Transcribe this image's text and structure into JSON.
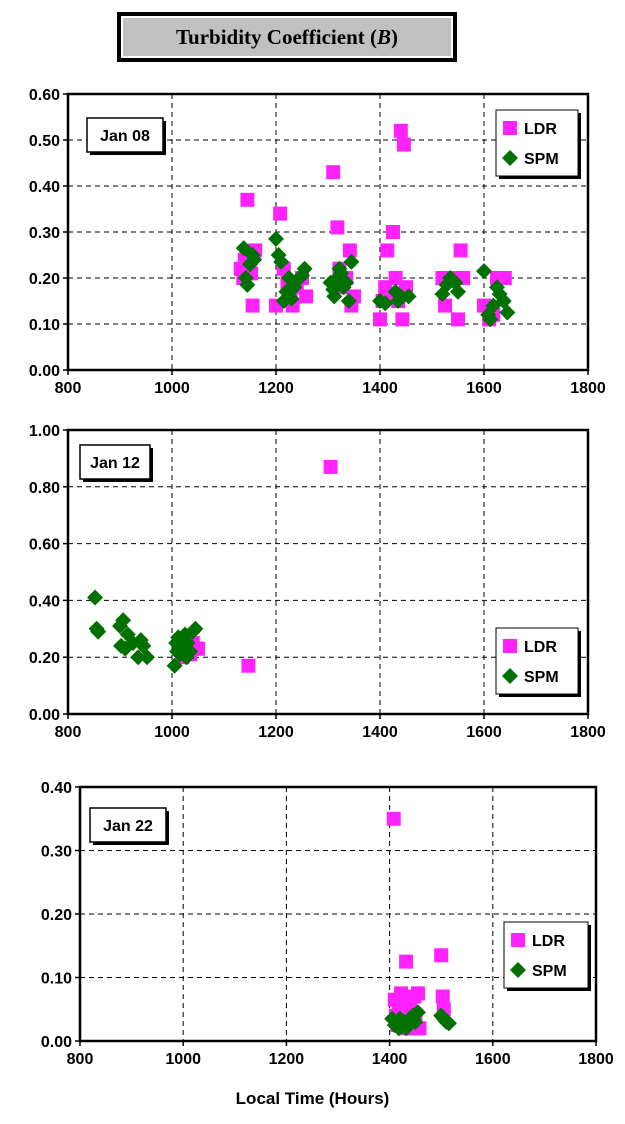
{
  "title": {
    "text": "Turbidity Coefficient (",
    "symbol": "B",
    "close": ")"
  },
  "xlabel": "Local Time (Hours)",
  "colors": {
    "LDR": "#ff22ff",
    "SPM": "#007000"
  },
  "chart_data": [
    {
      "type": "scatter",
      "panel_label": "Jan 08",
      "xlim": [
        800,
        1800
      ],
      "ylim": [
        0,
        0.6
      ],
      "xticks": [
        "800",
        "1000",
        "1200",
        "1400",
        "1600",
        "1800"
      ],
      "yticks": [
        "0.00",
        "0.10",
        "0.20",
        "0.30",
        "0.40",
        "0.50",
        "0.60"
      ],
      "grid": true,
      "legend_position": "top-right",
      "series": [
        {
          "name": "LDR",
          "points": [
            [
              1132,
              0.22
            ],
            [
              1137,
              0.2
            ],
            [
              1140,
              0.24
            ],
            [
              1145,
              0.37
            ],
            [
              1148,
              0.25
            ],
            [
              1152,
              0.21
            ],
            [
              1155,
              0.14
            ],
            [
              1160,
              0.26
            ],
            [
              1200,
              0.14
            ],
            [
              1208,
              0.34
            ],
            [
              1215,
              0.22
            ],
            [
              1222,
              0.19
            ],
            [
              1228,
              0.15
            ],
            [
              1232,
              0.14
            ],
            [
              1240,
              0.18
            ],
            [
              1250,
              0.2
            ],
            [
              1258,
              0.16
            ],
            [
              1310,
              0.43
            ],
            [
              1318,
              0.31
            ],
            [
              1322,
              0.22
            ],
            [
              1328,
              0.18
            ],
            [
              1335,
              0.2
            ],
            [
              1342,
              0.26
            ],
            [
              1345,
              0.14
            ],
            [
              1350,
              0.16
            ],
            [
              1400,
              0.11
            ],
            [
              1405,
              0.15
            ],
            [
              1410,
              0.18
            ],
            [
              1414,
              0.26
            ],
            [
              1420,
              0.16
            ],
            [
              1425,
              0.3
            ],
            [
              1430,
              0.2
            ],
            [
              1435,
              0.15
            ],
            [
              1440,
              0.52
            ],
            [
              1443,
              0.11
            ],
            [
              1446,
              0.49
            ],
            [
              1450,
              0.18
            ],
            [
              1520,
              0.2
            ],
            [
              1525,
              0.14
            ],
            [
              1540,
              0.2
            ],
            [
              1550,
              0.11
            ],
            [
              1555,
              0.26
            ],
            [
              1560,
              0.2
            ],
            [
              1600,
              0.14
            ],
            [
              1610,
              0.11
            ],
            [
              1618,
              0.12
            ],
            [
              1625,
              0.2
            ],
            [
              1632,
              0.2
            ],
            [
              1640,
              0.2
            ]
          ]
        },
        {
          "name": "SPM",
          "points": [
            [
              1138,
              0.265
            ],
            [
              1142,
              0.2
            ],
            [
              1145,
              0.185
            ],
            [
              1150,
              0.23
            ],
            [
              1155,
              0.25
            ],
            [
              1158,
              0.24
            ],
            [
              1200,
              0.285
            ],
            [
              1205,
              0.25
            ],
            [
              1210,
              0.235
            ],
            [
              1215,
              0.15
            ],
            [
              1220,
              0.17
            ],
            [
              1225,
              0.2
            ],
            [
              1230,
              0.155
            ],
            [
              1235,
              0.18
            ],
            [
              1240,
              0.195
            ],
            [
              1245,
              0.2
            ],
            [
              1250,
              0.205
            ],
            [
              1255,
              0.22
            ],
            [
              1305,
              0.19
            ],
            [
              1310,
              0.175
            ],
            [
              1312,
              0.16
            ],
            [
              1318,
              0.2
            ],
            [
              1322,
              0.22
            ],
            [
              1325,
              0.21
            ],
            [
              1330,
              0.18
            ],
            [
              1335,
              0.19
            ],
            [
              1340,
              0.15
            ],
            [
              1345,
              0.235
            ],
            [
              1400,
              0.15
            ],
            [
              1410,
              0.145
            ],
            [
              1430,
              0.17
            ],
            [
              1435,
              0.15
            ],
            [
              1440,
              0.16
            ],
            [
              1455,
              0.16
            ],
            [
              1520,
              0.165
            ],
            [
              1528,
              0.185
            ],
            [
              1535,
              0.2
            ],
            [
              1540,
              0.195
            ],
            [
              1545,
              0.19
            ],
            [
              1550,
              0.17
            ],
            [
              1600,
              0.215
            ],
            [
              1608,
              0.12
            ],
            [
              1612,
              0.11
            ],
            [
              1618,
              0.14
            ],
            [
              1625,
              0.18
            ],
            [
              1630,
              0.165
            ],
            [
              1638,
              0.15
            ],
            [
              1645,
              0.125
            ]
          ]
        }
      ]
    },
    {
      "type": "scatter",
      "panel_label": "Jan 12",
      "xlim": [
        800,
        1800
      ],
      "ylim": [
        0,
        1.0
      ],
      "xticks": [
        "800",
        "1000",
        "1200",
        "1400",
        "1600",
        "1800"
      ],
      "yticks": [
        "0.00",
        "0.20",
        "0.40",
        "0.60",
        "0.80",
        "1.00"
      ],
      "grid": true,
      "legend_position": "bottom-right",
      "series": [
        {
          "name": "LDR",
          "points": [
            [
              1020,
              0.2
            ],
            [
              1025,
              0.24
            ],
            [
              1030,
              0.22
            ],
            [
              1035,
              0.21
            ],
            [
              1040,
              0.25
            ],
            [
              1045,
              0.23
            ],
            [
              1050,
              0.23
            ],
            [
              1147,
              0.17
            ],
            [
              1305,
              0.87
            ]
          ]
        },
        {
          "name": "SPM",
          "points": [
            [
              852,
              0.41
            ],
            [
              855,
              0.3
            ],
            [
              858,
              0.29
            ],
            [
              900,
              0.31
            ],
            [
              902,
              0.24
            ],
            [
              906,
              0.33
            ],
            [
              910,
              0.23
            ],
            [
              915,
              0.28
            ],
            [
              925,
              0.25
            ],
            [
              935,
              0.2
            ],
            [
              940,
              0.26
            ],
            [
              945,
              0.24
            ],
            [
              952,
              0.2
            ],
            [
              1005,
              0.17
            ],
            [
              1008,
              0.25
            ],
            [
              1010,
              0.22
            ],
            [
              1012,
              0.27
            ],
            [
              1015,
              0.21
            ],
            [
              1020,
              0.23
            ],
            [
              1025,
              0.28
            ],
            [
              1028,
              0.2
            ],
            [
              1030,
              0.25
            ],
            [
              1035,
              0.22
            ],
            [
              1040,
              0.29
            ],
            [
              1045,
              0.3
            ]
          ]
        }
      ]
    },
    {
      "type": "scatter",
      "panel_label": "Jan 22",
      "xlim": [
        800,
        1800
      ],
      "ylim": [
        0,
        0.4
      ],
      "xticks": [
        "800",
        "1000",
        "1200",
        "1400",
        "1600",
        "1800"
      ],
      "yticks": [
        "0.00",
        "0.10",
        "0.20",
        "0.30",
        "0.40"
      ],
      "grid": true,
      "legend_position": "bottom-right",
      "series": [
        {
          "name": "LDR",
          "points": [
            [
              1408,
              0.35
            ],
            [
              1410,
              0.065
            ],
            [
              1412,
              0.04
            ],
            [
              1415,
              0.025
            ],
            [
              1418,
              0.06
            ],
            [
              1420,
              0.03
            ],
            [
              1422,
              0.075
            ],
            [
              1425,
              0.05
            ],
            [
              1428,
              0.02
            ],
            [
              1430,
              0.04
            ],
            [
              1432,
              0.125
            ],
            [
              1435,
              0.06
            ],
            [
              1438,
              0.03
            ],
            [
              1440,
              0.05
            ],
            [
              1445,
              0.02
            ],
            [
              1448,
              0.07
            ],
            [
              1450,
              0.04
            ],
            [
              1455,
              0.075
            ],
            [
              1458,
              0.02
            ],
            [
              1500,
              0.135
            ],
            [
              1503,
              0.07
            ],
            [
              1505,
              0.05
            ]
          ]
        },
        {
          "name": "SPM",
          "points": [
            [
              1405,
              0.035
            ],
            [
              1410,
              0.025
            ],
            [
              1413,
              0.03
            ],
            [
              1418,
              0.02
            ],
            [
              1420,
              0.035
            ],
            [
              1425,
              0.025
            ],
            [
              1428,
              0.03
            ],
            [
              1432,
              0.02
            ],
            [
              1435,
              0.03
            ],
            [
              1440,
              0.035
            ],
            [
              1445,
              0.04
            ],
            [
              1450,
              0.03
            ],
            [
              1455,
              0.045
            ],
            [
              1500,
              0.04
            ],
            [
              1505,
              0.035
            ],
            [
              1510,
              0.03
            ],
            [
              1515,
              0.028
            ]
          ]
        }
      ]
    }
  ]
}
